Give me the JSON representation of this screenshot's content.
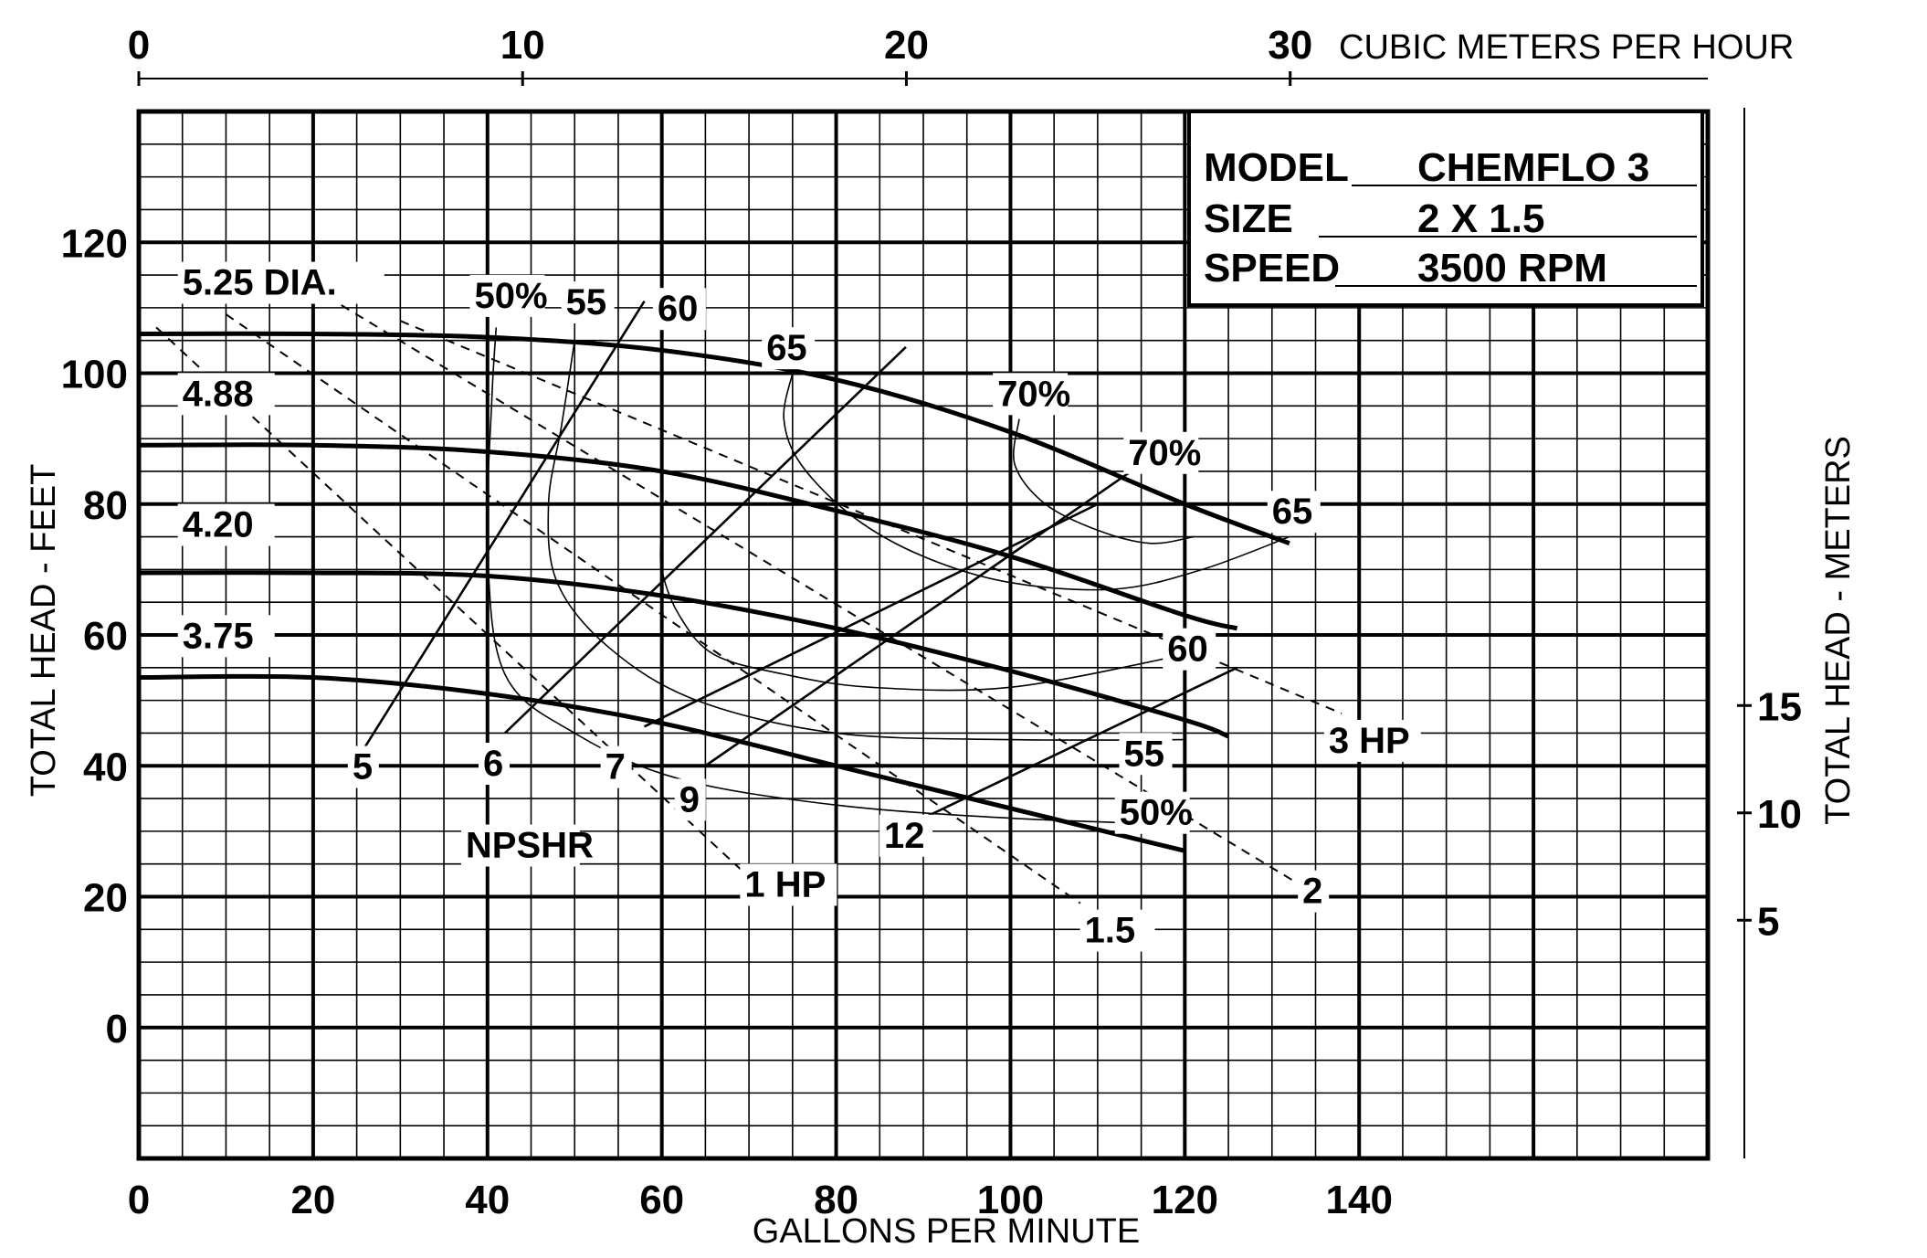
{
  "chart_data": {
    "type": "line",
    "title": "",
    "xlabel": "GALLONS PER MINUTE",
    "ylabel": "TOTAL HEAD - FEET",
    "x2label": "CUBIC METERS PER HOUR",
    "y2label": "TOTAL HEAD - METERS",
    "xlim": [
      0,
      180
    ],
    "ylim": [
      -20,
      140
    ],
    "x_ticks": [
      0,
      20,
      40,
      60,
      80,
      100,
      120,
      140
    ],
    "y_ticks": [
      0,
      20,
      40,
      60,
      80,
      100,
      120
    ],
    "x2_ticks": [
      "0",
      "10",
      "20",
      "30"
    ],
    "y2_ticks": [
      "5",
      "10",
      "15"
    ],
    "grid": true,
    "info_box": {
      "model_label": "MODEL",
      "model_value": "CHEMFLO 3",
      "size_label": "SIZE",
      "size_value": "2 X 1.5",
      "speed_label": "SPEED",
      "speed_value": "3500 RPM"
    },
    "impeller_curves": [
      {
        "name": "5.25 DIA.",
        "x": [
          0,
          20,
          40,
          60,
          80,
          100,
          120,
          132
        ],
        "y": [
          106,
          106,
          105.5,
          103.5,
          99,
          91,
          80,
          74
        ]
      },
      {
        "name": "4.88",
        "x": [
          0,
          20,
          40,
          60,
          80,
          100,
          120,
          126
        ],
        "y": [
          89,
          89,
          88,
          85,
          79,
          72,
          63,
          61
        ]
      },
      {
        "name": "4.20",
        "x": [
          0,
          20,
          40,
          60,
          80,
          100,
          120,
          125
        ],
        "y": [
          69.5,
          69.5,
          69,
          66,
          61,
          54.5,
          47,
          44.5
        ]
      },
      {
        "name": "3.75",
        "x": [
          0,
          20,
          40,
          60,
          80,
          100,
          120
        ],
        "y": [
          53.5,
          53.5,
          51,
          46.5,
          40,
          33.5,
          27
        ]
      }
    ],
    "efficiency_contours": [
      {
        "name": "50%",
        "x": [
          41,
          40.5,
          40,
          42,
          50,
          62,
          80,
          100,
          120
        ],
        "y": [
          107,
          96,
          73,
          54,
          45,
          38,
          34,
          32,
          31
        ]
      },
      {
        "name": "55",
        "x": [
          50,
          48.5,
          47,
          48,
          54,
          64,
          80,
          100,
          120
        ],
        "y": [
          105,
          92,
          80,
          68,
          58,
          50,
          45,
          44,
          44
        ]
      },
      {
        "name": "60",
        "x": [
          60,
          60,
          62,
          66,
          74,
          84,
          100,
          120
        ],
        "y": [
          76,
          70,
          63,
          57,
          54,
          52,
          52,
          57
        ]
      },
      {
        "name": "65",
        "x": [
          75,
          74,
          76,
          82,
          90,
          100,
          112,
          122,
          132
        ],
        "y": [
          100,
          93,
          86,
          78,
          72,
          68,
          67,
          70,
          75
        ]
      },
      {
        "name": "70%",
        "x": [
          101,
          100.5,
          104,
          110,
          116,
          121
        ],
        "y": [
          93,
          86,
          80,
          76,
          74,
          75
        ]
      }
    ],
    "power_lines": [
      {
        "name": "1 HP",
        "x": [
          2,
          70
        ],
        "y": [
          107,
          23
        ]
      },
      {
        "name": "1.5",
        "x": [
          10,
          108
        ],
        "y": [
          109,
          19
        ]
      },
      {
        "name": "2",
        "x": [
          20,
          133
        ],
        "y": [
          113,
          22
        ]
      },
      {
        "name": "3 HP",
        "x": [
          30,
          138
        ],
        "y": [
          108,
          48
        ]
      }
    ],
    "npshr_lines": [
      {
        "name": "5",
        "x": [
          26,
          58
        ],
        "y": [
          43,
          111
        ]
      },
      {
        "name": "6",
        "x": [
          42,
          88
        ],
        "y": [
          45,
          104
        ]
      },
      {
        "name": "7",
        "x": [
          58,
          110
        ],
        "y": [
          46,
          80
        ]
      },
      {
        "name": "9",
        "x": [
          65,
          116
        ],
        "y": [
          40,
          87
        ]
      },
      {
        "name": "12",
        "x": [
          90,
          126
        ],
        "y": [
          32,
          55
        ]
      }
    ],
    "npshr_label": "NPSHR",
    "annotations": [
      "70%",
      "65",
      "60",
      "55",
      "50%"
    ]
  }
}
